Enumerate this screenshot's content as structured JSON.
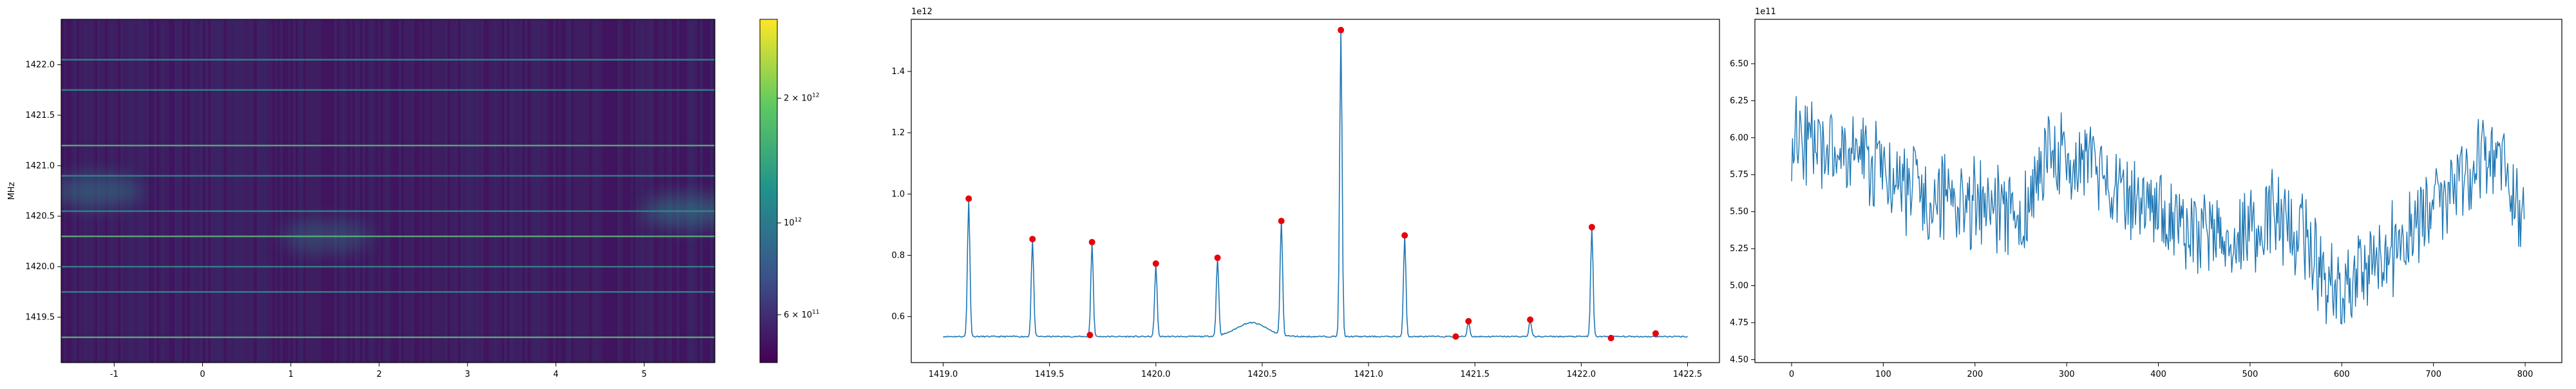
{
  "chart_data": [
    {
      "type": "heatmap",
      "ylabel": "MHz",
      "xlim": [
        -1.6,
        5.8
      ],
      "ylim": [
        1419.05,
        1422.45
      ],
      "xticks": [
        "-1",
        "0",
        "1",
        "2",
        "3",
        "4",
        "5"
      ],
      "yticks": [
        "1419.5",
        "1420.0",
        "1420.5",
        "1421.0",
        "1421.5",
        "1422.0"
      ],
      "colorbar": {
        "scale": "log",
        "ticks": [
          {
            "base": "6",
            "mant": "10",
            "exp": "11",
            "value": 600000000000.0
          },
          {
            "base": "",
            "mant": "10",
            "exp": "12",
            "value": 1000000000000.0
          },
          {
            "base": "2",
            "mant": "10",
            "exp": "12",
            "value": 2000000000000.0
          }
        ],
        "range": [
          460000000000.0,
          3100000000000.0
        ],
        "colormap": "viridis"
      },
      "bright_lines_mhz": [
        1419.3,
        1419.75,
        1420.0,
        1420.3,
        1420.55,
        1420.9,
        1421.2,
        1421.75,
        1422.05
      ],
      "blobs": [
        {
          "x": -1.2,
          "y": 1420.75,
          "level": 0.45
        },
        {
          "x": 1.4,
          "y": 1420.3,
          "level": 0.35
        },
        {
          "x": 5.5,
          "y": 1420.55,
          "level": 0.5
        }
      ]
    },
    {
      "type": "line",
      "offset_label": "1e12",
      "xlim": [
        1418.85,
        1422.65
      ],
      "ylim": [
        0.45,
        1.57
      ],
      "xticks": [
        "1419.0",
        "1419.5",
        "1420.0",
        "1420.5",
        "1421.0",
        "1421.5",
        "1422.0",
        "1422.5"
      ],
      "yticks": [
        "0.6",
        "0.8",
        "1.0",
        "1.2",
        "1.4"
      ],
      "baseline": 0.535,
      "x_start": 1419.0,
      "x_end": 1422.5,
      "series_color": "#1f77b4",
      "marker_color": "#e8000b",
      "peaks": [
        {
          "x": 1419.12,
          "y": 0.985
        },
        {
          "x": 1419.42,
          "y": 0.853
        },
        {
          "x": 1419.7,
          "y": 0.843
        },
        {
          "x": 1419.69,
          "y": 0.54
        },
        {
          "x": 1420.0,
          "y": 0.773
        },
        {
          "x": 1420.29,
          "y": 0.792
        },
        {
          "x": 1420.59,
          "y": 0.912
        },
        {
          "x": 1420.87,
          "y": 1.535
        },
        {
          "x": 1421.17,
          "y": 0.865
        },
        {
          "x": 1421.41,
          "y": 0.535
        },
        {
          "x": 1421.47,
          "y": 0.585
        },
        {
          "x": 1421.76,
          "y": 0.59
        },
        {
          "x": 1422.05,
          "y": 0.892
        },
        {
          "x": 1422.14,
          "y": 0.53
        },
        {
          "x": 1422.35,
          "y": 0.545
        }
      ]
    },
    {
      "type": "line",
      "offset_label": "1e11",
      "xlim": [
        -40,
        840
      ],
      "ylim": [
        4.48,
        6.8
      ],
      "xticks": [
        "0",
        "100",
        "200",
        "300",
        "400",
        "500",
        "600",
        "700",
        "800"
      ],
      "yticks": [
        "4.50",
        "4.75",
        "5.00",
        "5.25",
        "5.50",
        "5.75",
        "6.00",
        "6.25",
        "6.50"
      ],
      "n_points": 800,
      "series_color": "#1f77b4",
      "trend": [
        [
          0,
          6.05
        ],
        [
          40,
          5.9
        ],
        [
          60,
          5.9
        ],
        [
          100,
          5.75
        ],
        [
          150,
          5.6
        ],
        [
          200,
          5.55
        ],
        [
          250,
          5.45
        ],
        [
          280,
          5.9
        ],
        [
          300,
          5.85
        ],
        [
          350,
          5.7
        ],
        [
          400,
          5.5
        ],
        [
          430,
          5.35
        ],
        [
          480,
          5.35
        ],
        [
          530,
          5.5
        ],
        [
          560,
          5.3
        ],
        [
          590,
          4.95
        ],
        [
          620,
          5.1
        ],
        [
          660,
          5.25
        ],
        [
          700,
          5.55
        ],
        [
          740,
          5.8
        ],
        [
          770,
          5.95
        ],
        [
          800,
          5.3
        ]
      ]
    }
  ]
}
